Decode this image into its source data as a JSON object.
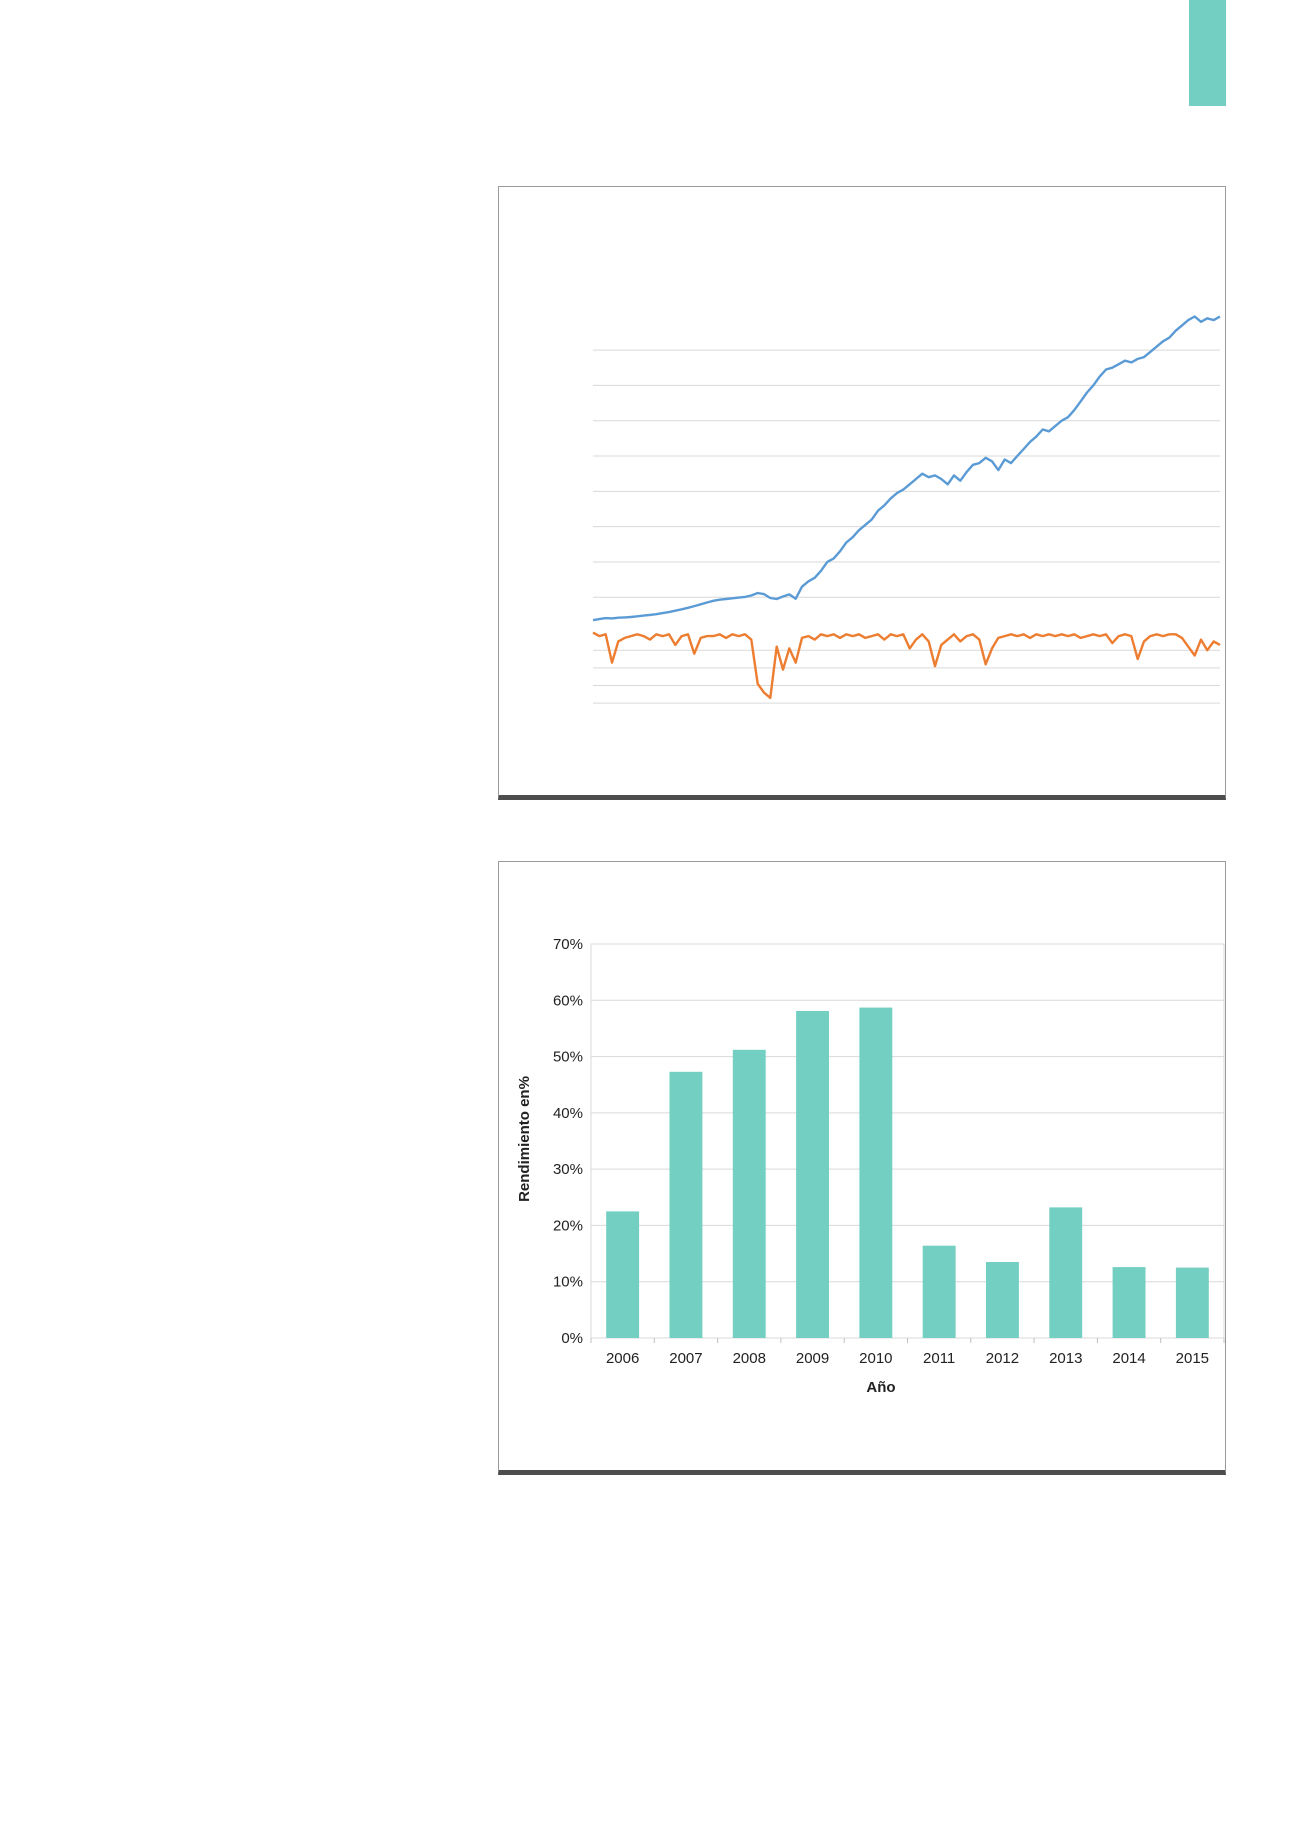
{
  "page": {
    "accent_color": "#72cfc2",
    "frame_border_color": "#4d4d4d"
  },
  "chart_data": [
    {
      "type": "line",
      "title": "",
      "xlabel": "",
      "ylabel": "",
      "axes_labels_visible": false,
      "grid": true,
      "series": [
        {
          "color": "#5b9bd5",
          "values": [
            0.35,
            0.38,
            0.41,
            0.4,
            0.42,
            0.43,
            0.44,
            0.46,
            0.48,
            0.5,
            0.52,
            0.55,
            0.58,
            0.62,
            0.66,
            0.7,
            0.75,
            0.8,
            0.85,
            0.9,
            0.93,
            0.95,
            0.97,
            0.99,
            1.01,
            1.05,
            1.12,
            1.09,
            0.98,
            0.95,
            1.02,
            1.08,
            0.96,
            1.3,
            1.45,
            1.55,
            1.75,
            2.0,
            2.1,
            2.3,
            2.55,
            2.7,
            2.9,
            3.05,
            3.2,
            3.45,
            3.6,
            3.8,
            3.95,
            4.05,
            4.2,
            4.35,
            4.5,
            4.4,
            4.45,
            4.35,
            4.2,
            4.45,
            4.3,
            4.55,
            4.75,
            4.8,
            4.95,
            4.85,
            4.6,
            4.9,
            4.8,
            5.0,
            5.2,
            5.4,
            5.55,
            5.75,
            5.7,
            5.85,
            6.0,
            6.1,
            6.3,
            6.55,
            6.8,
            7.0,
            7.25,
            7.45,
            7.5,
            7.6,
            7.7,
            7.65,
            7.75,
            7.8,
            7.95,
            8.1,
            8.25,
            8.35,
            8.55,
            8.7,
            8.85,
            8.95,
            8.8,
            8.9,
            8.85,
            8.95
          ]
        },
        {
          "color": "#ed7d31",
          "values": [
            0.0,
            -0.1,
            -0.05,
            -0.85,
            -0.25,
            -0.15,
            -0.1,
            -0.05,
            -0.1,
            -0.2,
            -0.05,
            -0.1,
            -0.05,
            -0.35,
            -0.1,
            -0.05,
            -0.6,
            -0.15,
            -0.1,
            -0.1,
            -0.05,
            -0.15,
            -0.05,
            -0.1,
            -0.05,
            -0.2,
            -1.45,
            -1.7,
            -1.85,
            -0.4,
            -1.05,
            -0.45,
            -0.85,
            -0.15,
            -0.1,
            -0.2,
            -0.05,
            -0.1,
            -0.05,
            -0.15,
            -0.05,
            -0.1,
            -0.05,
            -0.15,
            -0.1,
            -0.05,
            -0.2,
            -0.05,
            -0.1,
            -0.05,
            -0.45,
            -0.2,
            -0.05,
            -0.25,
            -0.95,
            -0.35,
            -0.2,
            -0.05,
            -0.25,
            -0.1,
            -0.05,
            -0.2,
            -0.9,
            -0.45,
            -0.15,
            -0.1,
            -0.05,
            -0.1,
            -0.05,
            -0.15,
            -0.05,
            -0.1,
            -0.05,
            -0.1,
            -0.05,
            -0.1,
            -0.05,
            -0.15,
            -0.1,
            -0.05,
            -0.1,
            -0.05,
            -0.3,
            -0.1,
            -0.05,
            -0.1,
            -0.75,
            -0.25,
            -0.1,
            -0.05,
            -0.1,
            -0.05,
            -0.05,
            -0.15,
            -0.4,
            -0.65,
            -0.2,
            -0.5,
            -0.25,
            -0.35
          ]
        }
      ]
    },
    {
      "type": "bar",
      "title": "",
      "xlabel": "Año",
      "ylabel": "Rendimiento en%",
      "color": "#72cfc2",
      "grid": true,
      "categories": [
        "2006",
        "2007",
        "2008",
        "2009",
        "2010",
        "2011",
        "2012",
        "2013",
        "2014",
        "2015"
      ],
      "values": [
        22.5,
        47.3,
        51.2,
        58.1,
        58.7,
        16.4,
        13.5,
        23.2,
        12.6,
        12.5
      ],
      "ylim": [
        0,
        70
      ],
      "yticks": [
        "0%",
        "10%",
        "20%",
        "30%",
        "40%",
        "50%",
        "60%",
        "70%"
      ]
    }
  ]
}
